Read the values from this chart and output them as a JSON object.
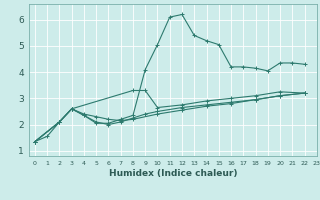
{
  "xlabel": "Humidex (Indice chaleur)",
  "bg_color": "#cdecea",
  "grid_color": "#ffffff",
  "line_color": "#2d7a6e",
  "xlim": [
    -0.5,
    23
  ],
  "ylim": [
    0.8,
    6.6
  ],
  "xticks": [
    0,
    1,
    2,
    3,
    4,
    5,
    6,
    7,
    8,
    9,
    10,
    11,
    12,
    13,
    14,
    15,
    16,
    17,
    18,
    19,
    20,
    21,
    22,
    23
  ],
  "yticks": [
    1,
    2,
    3,
    4,
    5,
    6
  ],
  "series1": [
    [
      0,
      1.35
    ],
    [
      1,
      1.55
    ],
    [
      2,
      2.1
    ],
    [
      3,
      2.6
    ],
    [
      4,
      2.35
    ],
    [
      5,
      2.05
    ],
    [
      6,
      2.05
    ],
    [
      7,
      2.2
    ],
    [
      8,
      2.35
    ],
    [
      9,
      4.1
    ],
    [
      10,
      5.05
    ],
    [
      11,
      6.1
    ],
    [
      12,
      6.2
    ],
    [
      13,
      5.4
    ],
    [
      14,
      5.2
    ],
    [
      15,
      5.05
    ],
    [
      16,
      4.2
    ],
    [
      17,
      4.2
    ],
    [
      18,
      4.15
    ],
    [
      19,
      4.05
    ],
    [
      20,
      4.35
    ],
    [
      21,
      4.35
    ],
    [
      22,
      4.3
    ]
  ],
  "series2": [
    [
      0,
      1.35
    ],
    [
      2,
      2.1
    ],
    [
      3,
      2.6
    ],
    [
      8,
      3.3
    ],
    [
      9,
      3.3
    ],
    [
      10,
      2.65
    ],
    [
      12,
      2.75
    ],
    [
      14,
      2.9
    ],
    [
      16,
      3.0
    ],
    [
      18,
      3.1
    ],
    [
      20,
      3.25
    ],
    [
      22,
      3.2
    ]
  ],
  "series3": [
    [
      0,
      1.35
    ],
    [
      2,
      2.1
    ],
    [
      3,
      2.6
    ],
    [
      4,
      2.35
    ],
    [
      5,
      2.1
    ],
    [
      6,
      2.0
    ],
    [
      7,
      2.1
    ],
    [
      8,
      2.25
    ],
    [
      9,
      2.4
    ],
    [
      10,
      2.5
    ],
    [
      12,
      2.65
    ],
    [
      14,
      2.75
    ],
    [
      16,
      2.85
    ],
    [
      18,
      2.95
    ],
    [
      20,
      3.1
    ],
    [
      22,
      3.2
    ]
  ],
  "series4": [
    [
      0,
      1.35
    ],
    [
      2,
      2.1
    ],
    [
      3,
      2.6
    ],
    [
      4,
      2.4
    ],
    [
      5,
      2.3
    ],
    [
      6,
      2.2
    ],
    [
      7,
      2.15
    ],
    [
      8,
      2.2
    ],
    [
      10,
      2.4
    ],
    [
      12,
      2.55
    ],
    [
      14,
      2.7
    ],
    [
      16,
      2.8
    ],
    [
      18,
      2.95
    ],
    [
      20,
      3.1
    ],
    [
      22,
      3.2
    ]
  ]
}
